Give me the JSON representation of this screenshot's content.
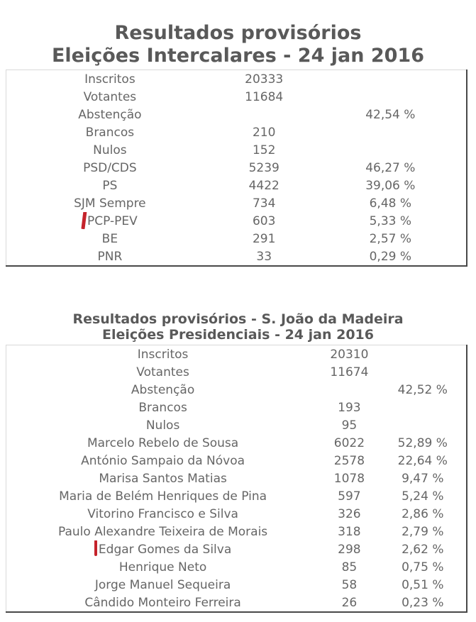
{
  "colors": {
    "title_text": "#595959",
    "body_text": "#666666",
    "accent_red": "#c5232b",
    "border_light": "#d9d9d9",
    "border_dark": "#484848",
    "background": "#ffffff"
  },
  "tables": [
    {
      "title_line1": "Resultados provisórios",
      "title_line2": "Eleições Intercalares - 24 jan 2016",
      "rows": [
        {
          "label": "Inscritos",
          "value": "20333",
          "pct": ""
        },
        {
          "label": "Votantes",
          "value": "11684",
          "pct": ""
        },
        {
          "label": "Abstenção",
          "value": "",
          "pct": "42,54 %"
        },
        {
          "label": "Brancos",
          "value": "210",
          "pct": ""
        },
        {
          "label": "Nulos",
          "value": "152",
          "pct": ""
        },
        {
          "label": "PSD/CDS",
          "value": "5239",
          "pct": "46,27 %"
        },
        {
          "label": "PS",
          "value": "4422",
          "pct": "39,06 %"
        },
        {
          "label": "SJM Sempre",
          "value": "734",
          "pct": "6,48 %"
        },
        {
          "label": "PCP-PEV",
          "value": "603",
          "pct": "5,33 %",
          "mark_icon": "red-stroke-tilted-icon"
        },
        {
          "label": "BE",
          "value": "291",
          "pct": "2,57 %"
        },
        {
          "label": "PNR",
          "value": "33",
          "pct": "0,29 %"
        }
      ]
    },
    {
      "title_line1": "Resultados provisórios - S. João da Madeira",
      "title_line2": "Eleições Presidenciais - 24 jan 2016",
      "rows": [
        {
          "label": "Inscritos",
          "value": "20310",
          "pct": ""
        },
        {
          "label": "Votantes",
          "value": "11674",
          "pct": ""
        },
        {
          "label": "Abstenção",
          "value": "",
          "pct": "42,52 %"
        },
        {
          "label": "Brancos",
          "value": "193",
          "pct": ""
        },
        {
          "label": "Nulos",
          "value": "95",
          "pct": ""
        },
        {
          "label": "Marcelo Rebelo de Sousa",
          "value": "6022",
          "pct": "52,89 %"
        },
        {
          "label": "António Sampaio da Nóvoa",
          "value": "2578",
          "pct": "22,64 %"
        },
        {
          "label": "Marisa Santos Matias",
          "value": "1078",
          "pct": "9,47 %"
        },
        {
          "label": "Maria de Belém Henriques de Pina",
          "value": "597",
          "pct": "5,24 %"
        },
        {
          "label": "Vitorino Francisco e Silva",
          "value": "326",
          "pct": "2,86 %"
        },
        {
          "label": "Paulo Alexandre Teixeira de Morais",
          "value": "318",
          "pct": "2,79 %"
        },
        {
          "label": "Edgar Gomes da Silva",
          "value": "298",
          "pct": "2,62 %",
          "mark_icon": "red-stroke-icon"
        },
        {
          "label": "Henrique Neto",
          "value": "85",
          "pct": "0,75 %"
        },
        {
          "label": "Jorge Manuel Sequeira",
          "value": "58",
          "pct": "0,51 %"
        },
        {
          "label": "Cândido Monteiro Ferreira",
          "value": "26",
          "pct": "0,23 %"
        }
      ]
    }
  ]
}
